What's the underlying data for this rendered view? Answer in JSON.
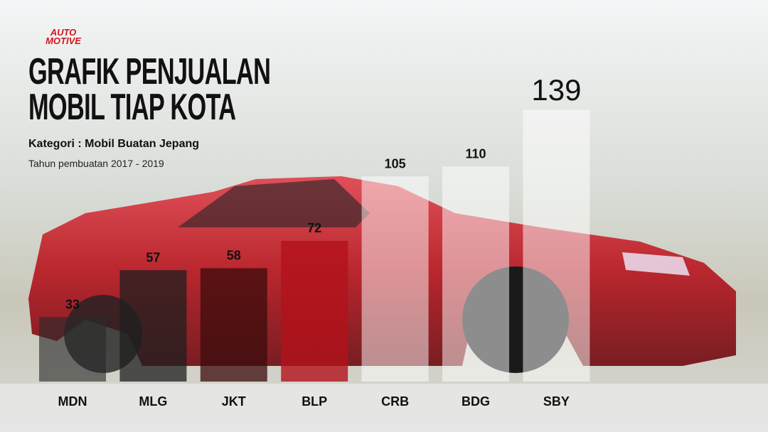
{
  "chart_data": {
    "type": "bar",
    "logo": [
      "AUTO",
      "MOTIVE"
    ],
    "title": "GRAFIK PENJUALAN MOBIL TIAP KOTA",
    "subtitle": "Kategori : Mobil Buatan Jepang",
    "note": "Tahun pembuatan 2017 - 2019",
    "categories": [
      "MDN",
      "MLG",
      "JKT",
      "BLP",
      "CRB",
      "BDG",
      "SBY"
    ],
    "values": [
      33,
      57,
      58,
      72,
      105,
      110,
      139
    ],
    "colors": [
      "#2a2a2aa0",
      "#1e1e1ec0",
      "#3a0c0cc0",
      "#b3121acc",
      "#ffffff80",
      "#ffffff80",
      "#ffffff80"
    ]
  }
}
